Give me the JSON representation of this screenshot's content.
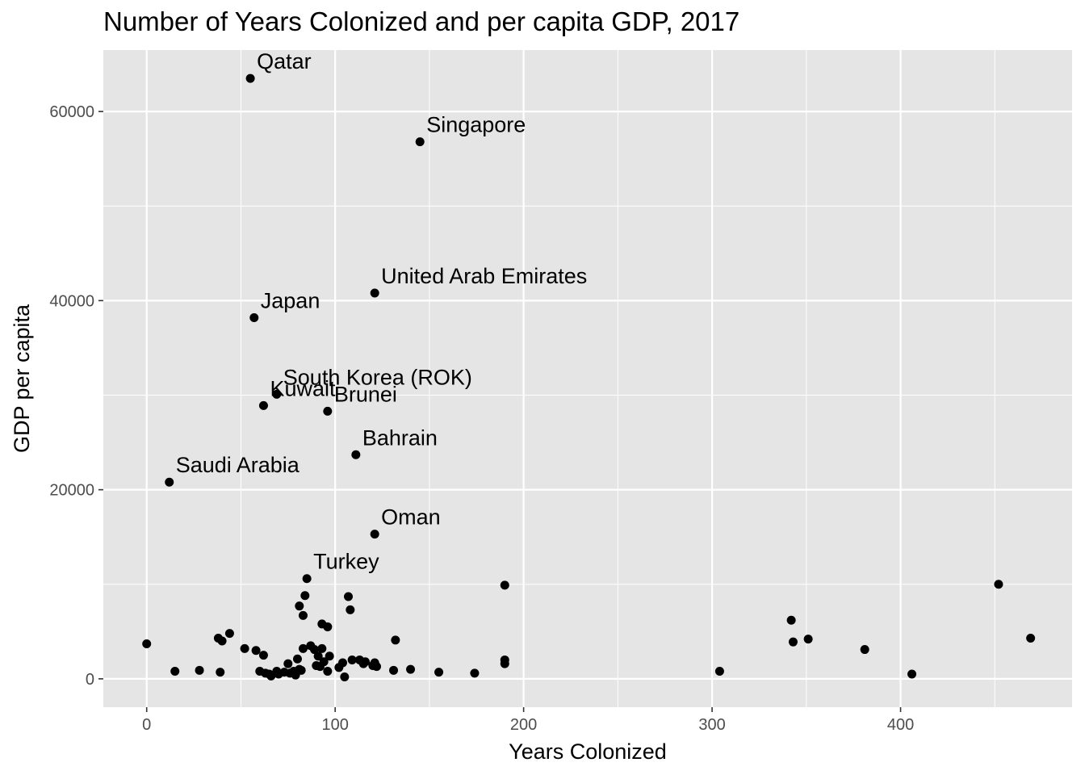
{
  "chart_data": {
    "type": "scatter",
    "title": "Number of Years Colonized and per capita GDP, 2017",
    "xlabel": "Years Colonized",
    "ylabel": "GDP per capita",
    "xlim": [
      -23,
      491
    ],
    "ylim": [
      -3000,
      66500
    ],
    "xticks": [
      0,
      100,
      200,
      300,
      400
    ],
    "yticks": [
      0,
      20000,
      40000,
      60000
    ],
    "grid": true,
    "colors": {
      "panel": "#e5e5e5",
      "grid": "#ffffff",
      "point": "#000000",
      "tick_text": "#4d4d4d"
    },
    "labeled_points": [
      {
        "label": "Qatar",
        "x": 55,
        "y": 63500
      },
      {
        "label": "Singapore",
        "x": 145,
        "y": 56800
      },
      {
        "label": "United Arab Emirates",
        "x": 121,
        "y": 40800
      },
      {
        "label": "Japan",
        "x": 57,
        "y": 38200
      },
      {
        "label": "South Korea (ROK)",
        "x": 69,
        "y": 30100
      },
      {
        "label": "Kuwait",
        "x": 62,
        "y": 28900
      },
      {
        "label": "Brunei",
        "x": 96,
        "y": 28300
      },
      {
        "label": "Bahrain",
        "x": 111,
        "y": 23700
      },
      {
        "label": "Saudi Arabia",
        "x": 12,
        "y": 20800
      },
      {
        "label": "Oman",
        "x": 121,
        "y": 15300
      },
      {
        "label": "Turkey",
        "x": 85,
        "y": 10600
      }
    ],
    "points": [
      {
        "x": 0,
        "y": 3700
      },
      {
        "x": 15,
        "y": 800
      },
      {
        "x": 28,
        "y": 900
      },
      {
        "x": 39,
        "y": 700
      },
      {
        "x": 38,
        "y": 4300
      },
      {
        "x": 40,
        "y": 4000
      },
      {
        "x": 44,
        "y": 4800
      },
      {
        "x": 52,
        "y": 3200
      },
      {
        "x": 58,
        "y": 3000
      },
      {
        "x": 62,
        "y": 2500
      },
      {
        "x": 60,
        "y": 800
      },
      {
        "x": 63,
        "y": 600
      },
      {
        "x": 65,
        "y": 500
      },
      {
        "x": 66,
        "y": 300
      },
      {
        "x": 69,
        "y": 800
      },
      {
        "x": 70,
        "y": 500
      },
      {
        "x": 73,
        "y": 700
      },
      {
        "x": 75,
        "y": 1600
      },
      {
        "x": 76,
        "y": 600
      },
      {
        "x": 78,
        "y": 800
      },
      {
        "x": 79,
        "y": 400
      },
      {
        "x": 80,
        "y": 2100
      },
      {
        "x": 81,
        "y": 1000
      },
      {
        "x": 81,
        "y": 7700
      },
      {
        "x": 82,
        "y": 900
      },
      {
        "x": 83,
        "y": 6700
      },
      {
        "x": 83,
        "y": 3200
      },
      {
        "x": 84,
        "y": 8800
      },
      {
        "x": 87,
        "y": 3500
      },
      {
        "x": 89,
        "y": 3100
      },
      {
        "x": 90,
        "y": 1400
      },
      {
        "x": 91,
        "y": 2400
      },
      {
        "x": 92,
        "y": 1300
      },
      {
        "x": 93,
        "y": 3200
      },
      {
        "x": 93,
        "y": 5800
      },
      {
        "x": 94,
        "y": 1800
      },
      {
        "x": 96,
        "y": 5500
      },
      {
        "x": 96,
        "y": 800
      },
      {
        "x": 97,
        "y": 2400
      },
      {
        "x": 102,
        "y": 1200
      },
      {
        "x": 104,
        "y": 1700
      },
      {
        "x": 105,
        "y": 200
      },
      {
        "x": 107,
        "y": 8700
      },
      {
        "x": 108,
        "y": 7300
      },
      {
        "x": 109,
        "y": 2000
      },
      {
        "x": 113,
        "y": 2000
      },
      {
        "x": 115,
        "y": 1600
      },
      {
        "x": 116,
        "y": 1800
      },
      {
        "x": 120,
        "y": 1400
      },
      {
        "x": 121,
        "y": 1700
      },
      {
        "x": 122,
        "y": 1300
      },
      {
        "x": 131,
        "y": 900
      },
      {
        "x": 132,
        "y": 4100
      },
      {
        "x": 140,
        "y": 1000
      },
      {
        "x": 155,
        "y": 700
      },
      {
        "x": 174,
        "y": 600
      },
      {
        "x": 190,
        "y": 9900
      },
      {
        "x": 190,
        "y": 2000
      },
      {
        "x": 190,
        "y": 1600
      },
      {
        "x": 304,
        "y": 800
      },
      {
        "x": 342,
        "y": 6200
      },
      {
        "x": 343,
        "y": 3900
      },
      {
        "x": 351,
        "y": 4200
      },
      {
        "x": 381,
        "y": 3100
      },
      {
        "x": 406,
        "y": 500
      },
      {
        "x": 452,
        "y": 10000
      },
      {
        "x": 469,
        "y": 4300
      }
    ]
  }
}
